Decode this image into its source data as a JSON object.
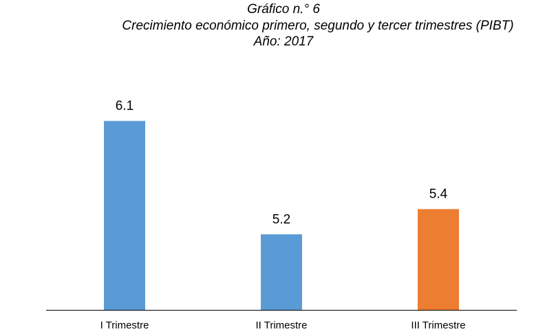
{
  "chart_data": {
    "type": "bar",
    "title_lines": [
      "Gráfico n.° 6",
      "Crecimiento económico primero, segundo y tercer trimestres (PIBT)",
      "Año: 2017"
    ],
    "categories": [
      "I Trimestre",
      "II Trimestre",
      "III Trimestre"
    ],
    "values": [
      6.1,
      5.2,
      5.4
    ],
    "colors": [
      "#5b9bd5",
      "#5b9bd5",
      "#ed7d31"
    ],
    "ylim": [
      4.6,
      6.3
    ]
  }
}
